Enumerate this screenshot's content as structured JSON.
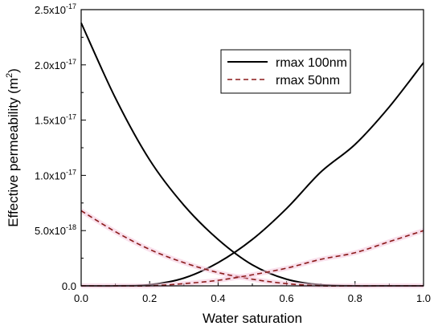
{
  "chart_data": {
    "type": "line",
    "xlabel": "Water saturation",
    "ylabel": "Effective permeability (m²)",
    "ylabel_parts": [
      "Effective permeability (m",
      "2",
      ")"
    ],
    "xlim": [
      0.0,
      1.0
    ],
    "ylim": [
      0,
      2.5e-17
    ],
    "x_ticks": [
      {
        "value": 0.0,
        "label": "0.0"
      },
      {
        "value": 0.2,
        "label": "0.2"
      },
      {
        "value": 0.4,
        "label": "0.4"
      },
      {
        "value": 0.6,
        "label": "0.6"
      },
      {
        "value": 0.8,
        "label": "0.8"
      },
      {
        "value": 1.0,
        "label": "1.0"
      }
    ],
    "y_ticks": [
      {
        "value": 0,
        "mantissa": "0.0",
        "exp": ""
      },
      {
        "value": 5e-18,
        "mantissa": "5.0x10",
        "exp": "-18"
      },
      {
        "value": 1e-17,
        "mantissa": "1.0x10",
        "exp": "-17"
      },
      {
        "value": 1.5e-17,
        "mantissa": "1.5x10",
        "exp": "-17"
      },
      {
        "value": 2e-17,
        "mantissa": "2.0x10",
        "exp": "-17"
      },
      {
        "value": 2.5e-17,
        "mantissa": "2.5x10",
        "exp": "-17"
      }
    ],
    "legend": {
      "placement": "top-right",
      "entries": [
        {
          "label": "rmax 100nm",
          "series_index": 0
        },
        {
          "label": "rmax 50nm",
          "series_index": 2
        }
      ]
    },
    "x": [
      0.0,
      0.1,
      0.2,
      0.3,
      0.4,
      0.5,
      0.6,
      0.7,
      0.8,
      0.9,
      1.0
    ],
    "series": [
      {
        "name": "rmax 100nm",
        "style": "solid",
        "color": "#000000",
        "values": [
          2.38e-17,
          1.7e-17,
          1.14e-17,
          7.3e-18,
          4.2e-18,
          1.9e-18,
          6e-19,
          1e-19,
          0.0,
          0.0,
          0.0
        ]
      },
      {
        "name": "rmax 100nm",
        "style": "solid",
        "color": "#000000",
        "values": [
          0.0,
          0.0,
          1e-19,
          7e-19,
          2.1e-18,
          4.2e-18,
          7e-18,
          1.03e-17,
          1.28e-17,
          1.62e-17,
          2.02e-17
        ]
      },
      {
        "name": "rmax 50nm",
        "style": "dashed",
        "color": "#8b1a1a",
        "values": [
          6.8e-18,
          4.9e-18,
          3.3e-18,
          2.1e-18,
          1.2e-18,
          6e-19,
          2e-19,
          0.0,
          0.0,
          0.0,
          0.0
        ]
      },
      {
        "name": "rmax 50nm",
        "style": "dashed",
        "color": "#8b1a1a",
        "values": [
          0.0,
          0.0,
          0.0,
          2e-19,
          5e-19,
          1e-18,
          1.6e-18,
          2.4e-18,
          3e-18,
          4e-18,
          5e-18
        ]
      }
    ]
  }
}
